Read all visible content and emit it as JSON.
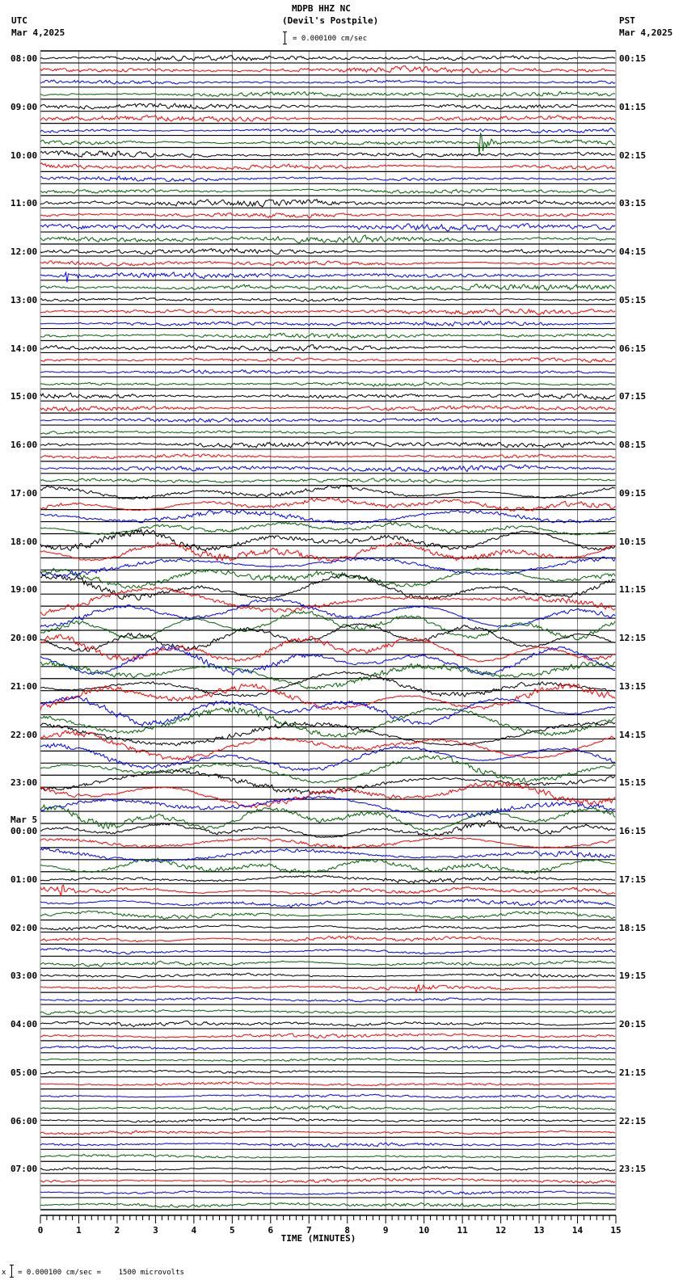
{
  "header": {
    "station": "MDPB HHZ NC",
    "location": "(Devil's Postpile)",
    "scale_text": "= 0.000100 cm/sec",
    "left_tz": "UTC",
    "left_date": "Mar 4,2025",
    "right_tz": "PST",
    "right_date": "Mar 4,2025"
  },
  "footer": {
    "scale_text": "= 0.000100 cm/sec =    1500 microvolts",
    "marker": "x"
  },
  "chart_data": {
    "type": "line",
    "title": "MDPB HHZ NC (Devil's Postpile)",
    "xlabel": "TIME (MINUTES)",
    "ylabel": "",
    "xlim": [
      0,
      15
    ],
    "x_ticks": [
      "0",
      "1",
      "2",
      "3",
      "4",
      "5",
      "6",
      "7",
      "8",
      "9",
      "10",
      "11",
      "12",
      "13",
      "14",
      "15"
    ],
    "minor_ticks_per_minute": 6,
    "traces_per_hour": 4,
    "trace_colors": [
      "#000000",
      "#ff0000",
      "#0000ff",
      "#006400"
    ],
    "gridline_color": "#808080",
    "day_change_label": "Mar 5",
    "day_change_index": 16,
    "left_labels": [
      "08:00",
      "09:00",
      "10:00",
      "11:00",
      "12:00",
      "13:00",
      "14:00",
      "15:00",
      "16:00",
      "17:00",
      "18:00",
      "19:00",
      "20:00",
      "21:00",
      "22:00",
      "23:00",
      "00:00",
      "01:00",
      "02:00",
      "03:00",
      "04:00",
      "05:00",
      "06:00",
      "07:00"
    ],
    "right_labels": [
      "00:15",
      "01:15",
      "02:15",
      "03:15",
      "04:15",
      "05:15",
      "06:15",
      "07:15",
      "08:15",
      "09:15",
      "10:15",
      "11:15",
      "12:15",
      "13:15",
      "14:15",
      "15:15",
      "16:15",
      "17:15",
      "18:15",
      "19:15",
      "20:15",
      "21:15",
      "22:15",
      "23:15"
    ],
    "hour_amplitude": [
      5,
      5.5,
      5.5,
      5.5,
      5,
      4.5,
      4.5,
      4.5,
      5,
      5,
      6,
      6.5,
      6.5,
      6.5,
      6.5,
      6,
      5,
      4,
      3.5,
      3.5,
      3.2,
      3.2,
      3.2,
      3.2
    ],
    "hour_longperiod": [
      0.3,
      0.3,
      0.5,
      0.4,
      0.4,
      0.3,
      0.3,
      0.3,
      0.5,
      2.5,
      4,
      6,
      6,
      6,
      6,
      5,
      3,
      1.2,
      0.8,
      0.5,
      0.6,
      0.5,
      0.5,
      0.6
    ],
    "events": [
      {
        "hour_index": 1,
        "trace": 3,
        "minute": 11.5,
        "amplitude": 14,
        "label": "local event"
      },
      {
        "hour_index": 4,
        "trace": 2,
        "minute": 0.7,
        "amplitude": 12,
        "label": "local event"
      },
      {
        "hour_index": 17,
        "trace": 1,
        "minute": 0.5,
        "amplitude": 7,
        "label": "spike"
      },
      {
        "hour_index": 19,
        "trace": 1,
        "minute": 9.8,
        "amplitude": 7,
        "label": "spike"
      }
    ]
  }
}
